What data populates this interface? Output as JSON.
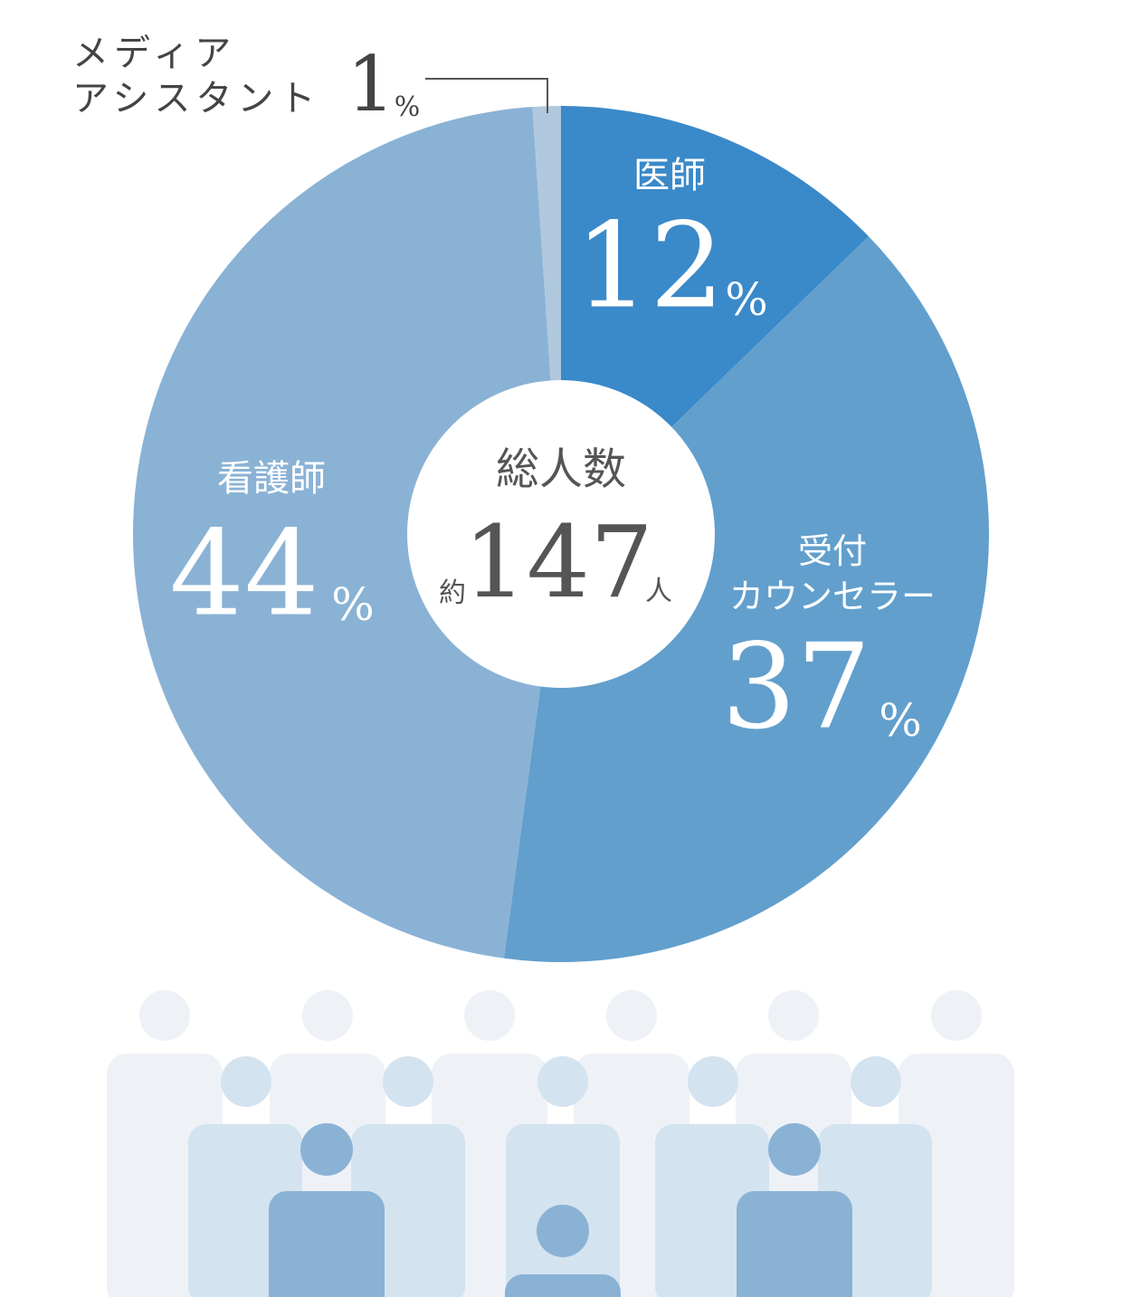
{
  "chart_data": {
    "type": "pie",
    "categories": [
      "医師",
      "受付\nカウンセラー",
      "看護師",
      "メディア\nアシスタント"
    ],
    "values": [
      12,
      37,
      44,
      1
    ],
    "colors": [
      "#3a89c9",
      "#629fcd",
      "#8ab2d5",
      "#b0c8dd"
    ],
    "unit": "%",
    "center_title": "総人数",
    "total_prefix": "約",
    "total": 147,
    "total_unit": "人"
  }
}
